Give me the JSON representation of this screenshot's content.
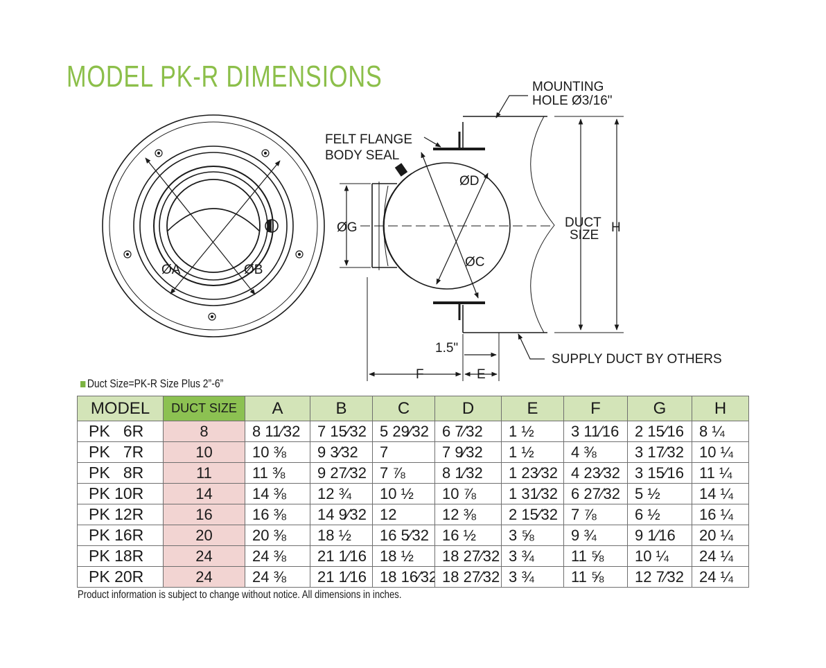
{
  "page": {
    "title": "MODEL PK-R DIMENSIONS",
    "note": "Duct Size=PK-R Size Plus 2”-6”",
    "footer": "Product information is subject to change without notice. All dimensions in inches."
  },
  "drawing": {
    "labels": {
      "dia_a": "ØA",
      "dia_b": "ØB",
      "dia_g": "ØG",
      "dia_d": "ØD",
      "dia_c": "ØC",
      "mounting_1": "MOUNTING",
      "mounting_2": "HOLE Ø3/16\"",
      "felt_1": "FELT FLANGE",
      "felt_2": "BODY SEAL",
      "duct_1": "DUCT",
      "duct_2": "SIZE",
      "h": "H",
      "dim_15": "1.5\"",
      "f": "F",
      "e": "E",
      "supply": "SUPPLY DUCT BY OTHERS"
    }
  },
  "table": {
    "headers": [
      "MODEL",
      "DUCT SIZE",
      "A",
      "B",
      "C",
      "D",
      "E",
      "F",
      "G",
      "H"
    ],
    "rows": [
      {
        "model": "PK   6R",
        "duct": "8",
        "A": "8 11⁄32",
        "B": "7 15⁄32",
        "C": "5 29⁄32",
        "D": "6 7⁄32",
        "E": "1 ½",
        "F": "3 11⁄16",
        "G": "2 15⁄16",
        "H": "8 ¼"
      },
      {
        "model": "PK   7R",
        "duct": "10",
        "A": "10 ⅜",
        "B": "9 3⁄32",
        "C": "7",
        "D": "7 9⁄32",
        "E": "1 ½",
        "F": "4 ⅜",
        "G": "3 17⁄32",
        "H": "10 ¼"
      },
      {
        "model": "PK   8R",
        "duct": "11",
        "A": "11 ⅜",
        "B": "9 27⁄32",
        "C": "7 ⅞",
        "D": "8 1⁄32",
        "E": "1 23⁄32",
        "F": "4 23⁄32",
        "G": "3 15⁄16",
        "H": "11 ¼"
      },
      {
        "model": "PK 10R",
        "duct": "14",
        "A": "14 ⅜",
        "B": "12 ¾",
        "C": "10 ½",
        "D": "10 ⅞",
        "E": "1 31⁄32",
        "F": "6 27⁄32",
        "G": "5 ½",
        "H": "14 ¼"
      },
      {
        "model": "PK 12R",
        "duct": "16",
        "A": "16 ⅜",
        "B": "14 9⁄32",
        "C": "12",
        "D": "12 ⅜",
        "E": "2 15⁄32",
        "F": "7 ⅞",
        "G": "6 ½",
        "H": "16 ¼"
      },
      {
        "model": "PK 16R",
        "duct": "20",
        "A": "20 ⅜",
        "B": "18 ½",
        "C": "16 5⁄32",
        "D": "16 ½",
        "E": "3 ⅝",
        "F": "9 ¾",
        "G": "9 1⁄16",
        "H": "20 ¼"
      },
      {
        "model": "PK 18R",
        "duct": "24",
        "A": "24 ⅜",
        "B": "21 1⁄16",
        "C": "18 ½",
        "D": "18 27⁄32",
        "E": "3 ¾",
        "F": "11 ⅝",
        "G": "10 ¼",
        "H": "24 ¼"
      },
      {
        "model": "PK 20R",
        "duct": "24",
        "A": "24 ⅜",
        "B": "21 1⁄16",
        "C": "18 16⁄32",
        "D": "18 27⁄32",
        "E": "3 ¾",
        "F": "11 ⅝",
        "G": "12 7⁄32",
        "H": "24 ¼"
      }
    ]
  }
}
